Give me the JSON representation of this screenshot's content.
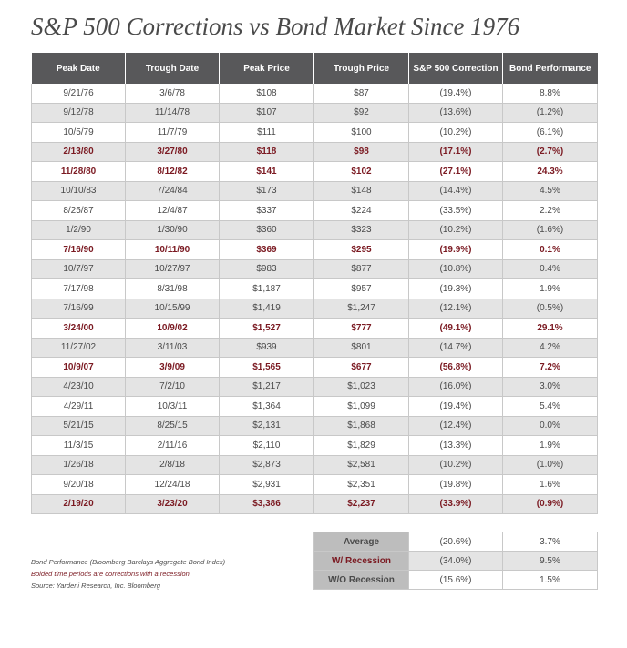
{
  "title": "S&P 500 Corrections vs Bond Market Since 1976",
  "colors": {
    "header_bg": "#58585a",
    "recession_text": "#7b1a22",
    "alt_row_bg": "#e4e4e4",
    "summary_label_bg": "#bdbdbd"
  },
  "chart_data": {
    "type": "table",
    "title": "S&P 500 Corrections vs Bond Market Since 1976",
    "columns": [
      "Peak Date",
      "Trough Date",
      "Peak Price",
      "Trough Price",
      "S&P 500 Correction",
      "Bond Performance"
    ],
    "rows": [
      {
        "cells": [
          "9/21/76",
          "3/6/78",
          "$108",
          "$87",
          "(19.4%)",
          "8.8%"
        ],
        "recession": false
      },
      {
        "cells": [
          "9/12/78",
          "11/14/78",
          "$107",
          "$92",
          "(13.6%)",
          "(1.2%)"
        ],
        "recession": false
      },
      {
        "cells": [
          "10/5/79",
          "11/7/79",
          "$111",
          "$100",
          "(10.2%)",
          "(6.1%)"
        ],
        "recession": false
      },
      {
        "cells": [
          "2/13/80",
          "3/27/80",
          "$118",
          "$98",
          "(17.1%)",
          "(2.7%)"
        ],
        "recession": true
      },
      {
        "cells": [
          "11/28/80",
          "8/12/82",
          "$141",
          "$102",
          "(27.1%)",
          "24.3%"
        ],
        "recession": true
      },
      {
        "cells": [
          "10/10/83",
          "7/24/84",
          "$173",
          "$148",
          "(14.4%)",
          "4.5%"
        ],
        "recession": false
      },
      {
        "cells": [
          "8/25/87",
          "12/4/87",
          "$337",
          "$224",
          "(33.5%)",
          "2.2%"
        ],
        "recession": false
      },
      {
        "cells": [
          "1/2/90",
          "1/30/90",
          "$360",
          "$323",
          "(10.2%)",
          "(1.6%)"
        ],
        "recession": false
      },
      {
        "cells": [
          "7/16/90",
          "10/11/90",
          "$369",
          "$295",
          "(19.9%)",
          "0.1%"
        ],
        "recession": true
      },
      {
        "cells": [
          "10/7/97",
          "10/27/97",
          "$983",
          "$877",
          "(10.8%)",
          "0.4%"
        ],
        "recession": false
      },
      {
        "cells": [
          "7/17/98",
          "8/31/98",
          "$1,187",
          "$957",
          "(19.3%)",
          "1.9%"
        ],
        "recession": false
      },
      {
        "cells": [
          "7/16/99",
          "10/15/99",
          "$1,419",
          "$1,247",
          "(12.1%)",
          "(0.5%)"
        ],
        "recession": false
      },
      {
        "cells": [
          "3/24/00",
          "10/9/02",
          "$1,527",
          "$777",
          "(49.1%)",
          "29.1%"
        ],
        "recession": true
      },
      {
        "cells": [
          "11/27/02",
          "3/11/03",
          "$939",
          "$801",
          "(14.7%)",
          "4.2%"
        ],
        "recession": false
      },
      {
        "cells": [
          "10/9/07",
          "3/9/09",
          "$1,565",
          "$677",
          "(56.8%)",
          "7.2%"
        ],
        "recession": true
      },
      {
        "cells": [
          "4/23/10",
          "7/2/10",
          "$1,217",
          "$1,023",
          "(16.0%)",
          "3.0%"
        ],
        "recession": false
      },
      {
        "cells": [
          "4/29/11",
          "10/3/11",
          "$1,364",
          "$1,099",
          "(19.4%)",
          "5.4%"
        ],
        "recession": false
      },
      {
        "cells": [
          "5/21/15",
          "8/25/15",
          "$2,131",
          "$1,868",
          "(12.4%)",
          "0.0%"
        ],
        "recession": false
      },
      {
        "cells": [
          "11/3/15",
          "2/11/16",
          "$2,110",
          "$1,829",
          "(13.3%)",
          "1.9%"
        ],
        "recession": false
      },
      {
        "cells": [
          "1/26/18",
          "2/8/18",
          "$2,873",
          "$2,581",
          "(10.2%)",
          "(1.0%)"
        ],
        "recession": false
      },
      {
        "cells": [
          "9/20/18",
          "12/24/18",
          "$2,931",
          "$2,351",
          "(19.8%)",
          "1.6%"
        ],
        "recession": false
      },
      {
        "cells": [
          "2/19/20",
          "3/23/20",
          "$3,386",
          "$2,237",
          "(33.9%)",
          "(0.9%)"
        ],
        "recession": true
      }
    ],
    "summary": [
      {
        "label": "Average",
        "correction": "(20.6%)",
        "bond": "3.7%",
        "recession": false
      },
      {
        "label": "W/ Recession",
        "correction": "(34.0%)",
        "bond": "9.5%",
        "recession": true
      },
      {
        "label": "W/O Recession",
        "correction": "(15.6%)",
        "bond": "1.5%",
        "recession": false
      }
    ]
  },
  "notes": [
    {
      "text": "Bond Performance (Bloomberg Barclays Aggregate Bond Index)",
      "red": false
    },
    {
      "text": "Bolded time periods are corrections with a recession.",
      "red": true
    },
    {
      "text": "Source: Yardeni Research, Inc. Bloomberg",
      "red": false
    }
  ]
}
